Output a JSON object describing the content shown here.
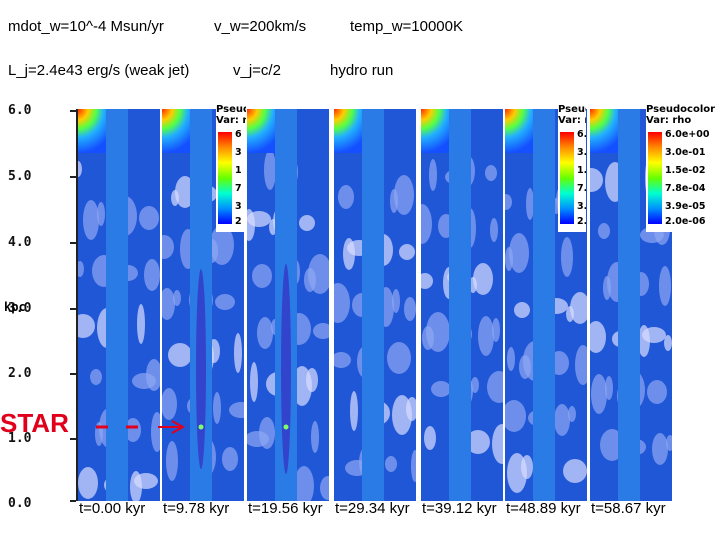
{
  "header": {
    "mdot": "mdot_w=10^-4 Msun/yr",
    "vw": "v_w=200km/s",
    "temp": "temp_w=10000K",
    "lj": "L_j=2.4e43 erg/s (weak jet)",
    "vj": "v_j=c/2",
    "run": "hydro run"
  },
  "axis": {
    "unit": "kpc",
    "ticks": [
      "6.0",
      "5.0",
      "4.0",
      "3.0",
      "2.0",
      "1.0",
      "0.0"
    ]
  },
  "annotation": {
    "star": "STAR"
  },
  "legend": {
    "title1": "Pseudocolor",
    "title2": "Var: rho",
    "levels": [
      "6.0e+00",
      "3.0e-01",
      "1.5e-02",
      "7.8e-04",
      "3.9e-05",
      "2.0e-06"
    ],
    "partial1": {
      "title1": "Pseudo",
      "title2": "Var: rh",
      "levels": [
        "6.",
        "3.",
        "1.",
        "7.",
        "3.",
        "2."
      ]
    },
    "partial2": {
      "title1": "Pseudo",
      "title2": "Var: r",
      "levels": [
        "6",
        "3",
        "1",
        "7",
        "3",
        "2"
      ]
    }
  },
  "colors": {
    "star": "#e0001b",
    "star_arrow": "#e0001b"
  },
  "snapshots": [
    {
      "time": "t=0.00 kyr"
    },
    {
      "time": "t=9.78 kyr"
    },
    {
      "time": "t=19.56 kyr"
    },
    {
      "time": "t=29.34 kyr"
    },
    {
      "time": "t=39.12 kyr"
    },
    {
      "time": "t=48.89 kyr"
    },
    {
      "time": "t=58.67 kyr"
    }
  ]
}
